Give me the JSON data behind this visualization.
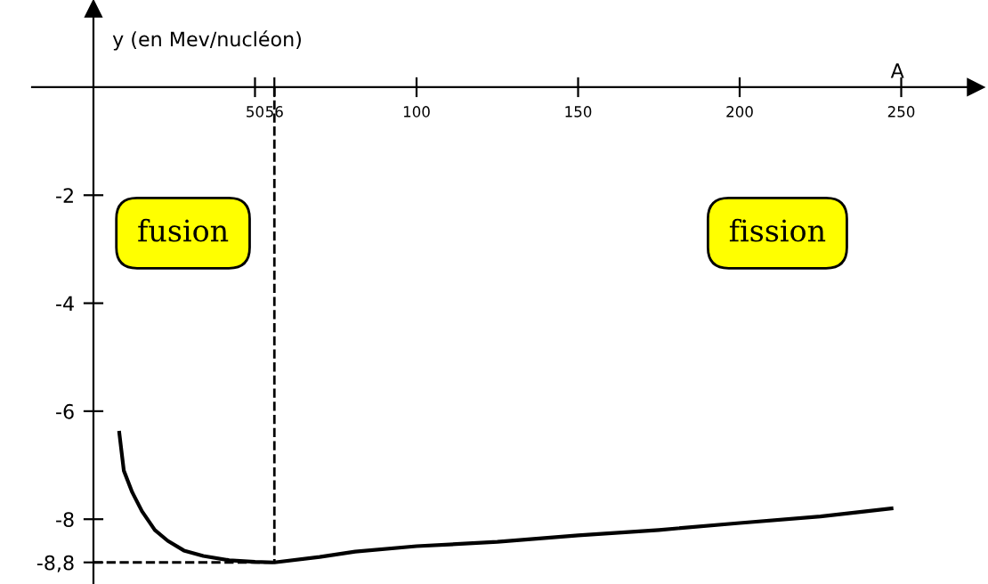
{
  "chart_data": {
    "type": "line",
    "xlabel": "A",
    "ylabel": "y (en Mev/nucléon)",
    "x": [
      8,
      9.4,
      12,
      15,
      19,
      23,
      28,
      34,
      42,
      50,
      56,
      70,
      81,
      100,
      125,
      150,
      175,
      200,
      225,
      247
    ],
    "series": [
      {
        "color": "#000000",
        "values": [
          -6.4,
          -7.1,
          -7.5,
          -7.85,
          -8.2,
          -8.4,
          -8.58,
          -8.68,
          -8.76,
          -8.79,
          -8.8,
          -8.7,
          -8.6,
          -8.5,
          -8.42,
          -8.3,
          -8.2,
          -8.07,
          -7.95,
          -7.8
        ]
      }
    ],
    "xlim": [
      -19,
      273
    ],
    "ylim": [
      -9.2,
      1.45
    ],
    "xticks": [
      50,
      56,
      100,
      150,
      200,
      250
    ],
    "yticks": [
      {
        "value": -2,
        "label": "-2"
      },
      {
        "value": -4,
        "label": "-4"
      },
      {
        "value": -6,
        "label": "-6"
      },
      {
        "value": -8,
        "label": "-8"
      },
      {
        "value": -8.8,
        "label": "-8,8"
      }
    ],
    "ref_lines": [
      {
        "axis": "x",
        "value": 56,
        "color": "#000000",
        "line_style": "dashed"
      },
      {
        "axis": "y",
        "value": -8.8,
        "color": "#000000",
        "line_style": "dashed"
      }
    ],
    "annotations": [
      "fusion",
      "fission"
    ],
    "grid": false,
    "legend": false,
    "marker": "none",
    "line_style": "solid"
  }
}
